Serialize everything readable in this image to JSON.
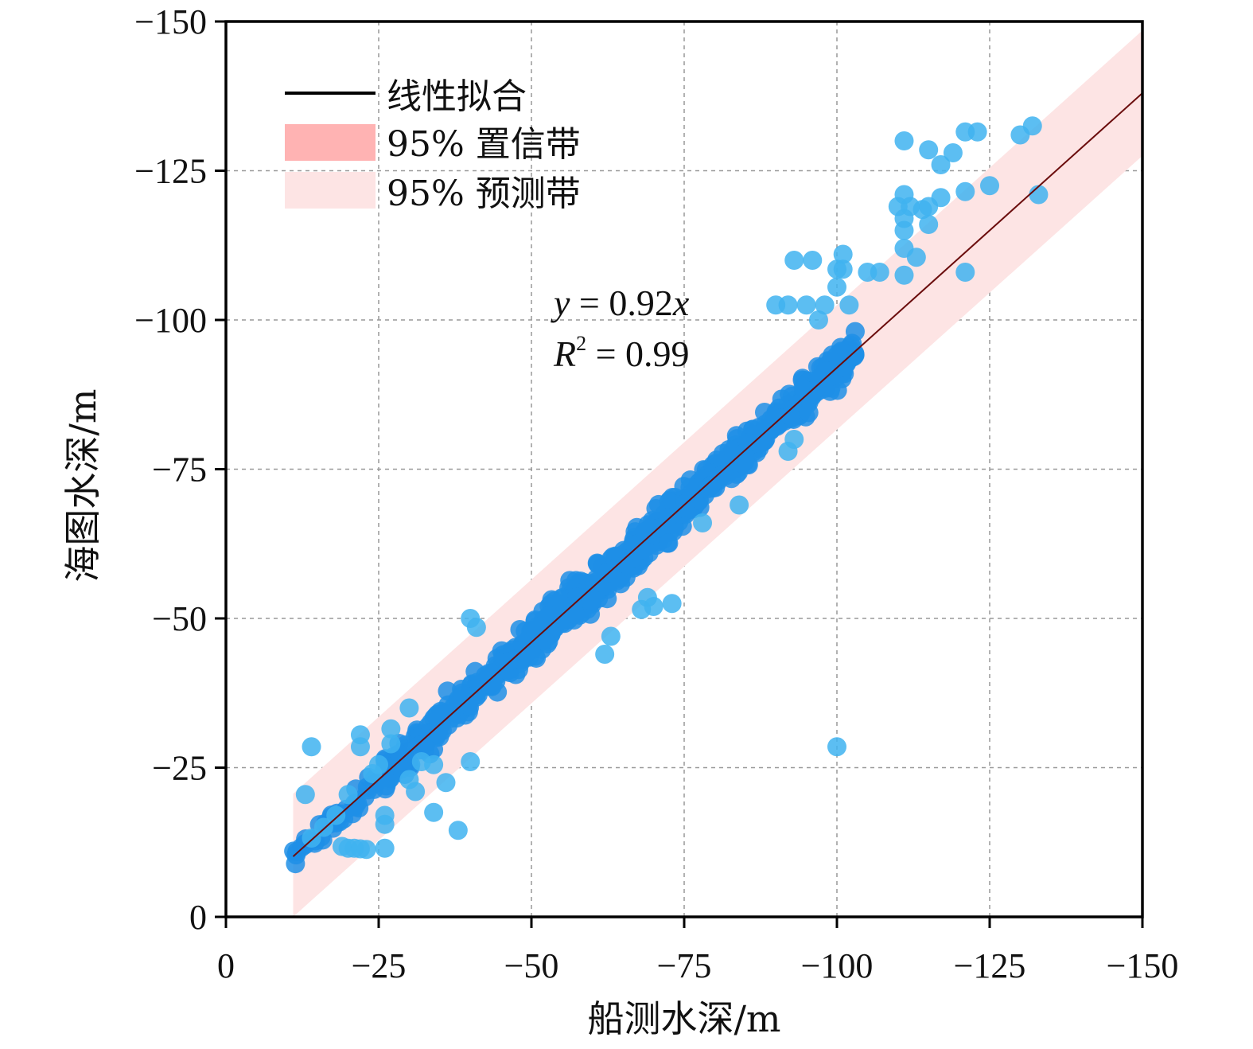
{
  "chart_data": {
    "type": "scatter",
    "xlabel": "船测水深/m",
    "ylabel": "海图水深/m",
    "xlim": [
      0,
      -150
    ],
    "ylim": [
      0,
      -150
    ],
    "x_ticks": [
      0,
      -25,
      -50,
      -75,
      -100,
      -125,
      -150
    ],
    "y_ticks": [
      0,
      -25,
      -50,
      -75,
      -100,
      -125,
      -150
    ],
    "x_tick_labels": [
      "0",
      "−25",
      "−50",
      "−75",
      "−100",
      "−125",
      "−150"
    ],
    "y_tick_labels": [
      "0",
      "−25",
      "−50",
      "−75",
      "−100",
      "−125",
      "−150"
    ],
    "grid": true,
    "legend_position": "top-left",
    "legend": [
      {
        "label": "线性拟合",
        "kind": "line",
        "color": "#000000"
      },
      {
        "label": "95% 置信带",
        "kind": "band",
        "color": "#ffb3b3"
      },
      {
        "label": "95% 预测带",
        "kind": "band",
        "color": "#fde4e4"
      }
    ],
    "annotation": {
      "eq_y": "y",
      "eq_rest": " = 0.92",
      "eq_x": "x",
      "r_name": "R",
      "r_sup": "2",
      "r_rest": " = 0.99"
    },
    "fit": {
      "slope": 0.92,
      "x_range": [
        -11,
        -150
      ],
      "color": "#6b0d0d"
    },
    "prediction_band": {
      "half_width": 10.5,
      "color": "#fde4e4"
    },
    "point_color": "#1f8fe6",
    "outlier_color": "#3fb3f0",
    "dense_clusters": [
      {
        "x0": -11,
        "x1": -26,
        "n": 45,
        "spread": 3.5
      },
      {
        "x0": -26,
        "x1": -45,
        "n": 140,
        "spread": 4.5
      },
      {
        "x0": -45,
        "x1": -75,
        "n": 380,
        "spread": 5.5
      },
      {
        "x0": -75,
        "x1": -103,
        "n": 300,
        "spread": 4.5
      }
    ],
    "points": [
      [
        -14,
        -28.5
      ],
      [
        -13,
        -20.5
      ],
      [
        -14,
        -13.2
      ],
      [
        -16,
        -15.0
      ],
      [
        -18,
        -17.0
      ],
      [
        -19,
        -11.8
      ],
      [
        -20,
        -11.5
      ],
      [
        -21,
        -11.5
      ],
      [
        -22,
        -11.4
      ],
      [
        -23,
        -11.3
      ],
      [
        -20,
        -20.5
      ],
      [
        -22,
        -30.5
      ],
      [
        -22,
        -28.5
      ],
      [
        -24,
        -24.0
      ],
      [
        -25,
        -25.5
      ],
      [
        -26,
        -17.0
      ],
      [
        -26,
        -15.5
      ],
      [
        -26,
        -11.5
      ],
      [
        -27,
        -31.5
      ],
      [
        -27,
        -29.0
      ],
      [
        -30,
        -23.0
      ],
      [
        -31,
        -21.0
      ],
      [
        -32,
        -26.0
      ],
      [
        -34,
        -17.5
      ],
      [
        -34,
        -25.5
      ],
      [
        -36,
        -22.5
      ],
      [
        -38,
        -14.5
      ],
      [
        -30,
        -35.0
      ],
      [
        -40,
        -50.0
      ],
      [
        -40,
        -26.0
      ],
      [
        -41,
        -48.5
      ],
      [
        -62,
        -44.0
      ],
      [
        -63,
        -47.0
      ],
      [
        -68,
        -51.5
      ],
      [
        -69,
        -53.5
      ],
      [
        -70,
        -52.0
      ],
      [
        -73,
        -52.5
      ],
      [
        -78,
        -66.0
      ],
      [
        -84,
        -69.0
      ],
      [
        -92,
        -78.0
      ],
      [
        -93,
        -80.0
      ],
      [
        -95,
        -102.5
      ],
      [
        -97,
        -100.0
      ],
      [
        -98,
        -102.5
      ],
      [
        -90,
        -102.5
      ],
      [
        -92,
        -102.5
      ],
      [
        -93,
        -110.0
      ],
      [
        -96,
        -110.0
      ],
      [
        -100,
        -108.5
      ],
      [
        -101,
        -108.5
      ],
      [
        -101,
        -111.0
      ],
      [
        -100,
        -105.5
      ],
      [
        -102,
        -102.5
      ],
      [
        -100,
        -28.5
      ],
      [
        -105,
        -108.0
      ],
      [
        -107,
        -108.0
      ],
      [
        -110,
        -119.0
      ],
      [
        -111,
        -121.0
      ],
      [
        -111,
        -117.0
      ],
      [
        -111,
        -115.0
      ],
      [
        -111,
        -112.0
      ],
      [
        -111,
        -107.5
      ],
      [
        -112,
        -119.0
      ],
      [
        -113,
        -110.5
      ],
      [
        -114,
        -118.5
      ],
      [
        -115,
        -116.0
      ],
      [
        -115,
        -119.0
      ],
      [
        -111,
        -130.0
      ],
      [
        -115,
        -128.5
      ],
      [
        -117,
        -126.0
      ],
      [
        -119,
        -128.0
      ],
      [
        -117,
        -120.5
      ],
      [
        -121,
        -121.5
      ],
      [
        -121,
        -131.5
      ],
      [
        -123,
        -131.5
      ],
      [
        -125,
        -122.5
      ],
      [
        -121,
        -108.0
      ],
      [
        -130,
        -131.0
      ],
      [
        -132,
        -132.5
      ],
      [
        -133,
        -121.0
      ]
    ]
  }
}
